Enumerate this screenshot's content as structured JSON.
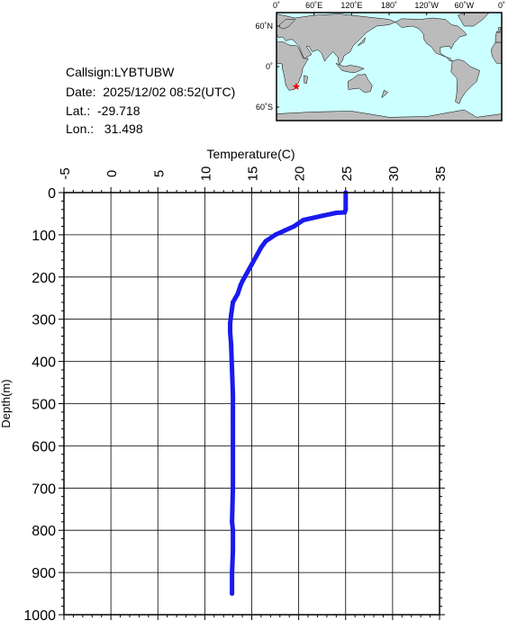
{
  "info": {
    "callsign": "Callsign:LYBTUBW",
    "date": "Date:  2025/12/02 08:52(UTC)",
    "lat": "Lat.:  -29.718",
    "lon": "Lon.:   31.498"
  },
  "map": {
    "lon_ticks": [
      "0˚",
      "60˚E",
      "120˚E",
      "180˚",
      "120˚W",
      "60˚W",
      "0˚"
    ],
    "lat_ticks": [
      "60˚N",
      "0˚",
      "60˚S"
    ],
    "marker": {
      "lat": -29.718,
      "lon": 31.498,
      "color": "#ff0000"
    },
    "ocean_color": "#ccffff",
    "land_color": "#bbbbbb"
  },
  "chart_data": {
    "type": "line",
    "xlabel": "Temperature(C)",
    "ylabel": "Depth(m)",
    "xlim": [
      -5,
      35
    ],
    "ylim": [
      0,
      1000
    ],
    "x_ticks": [
      "-5",
      "0",
      "5",
      "10",
      "15",
      "20",
      "25",
      "30",
      "35"
    ],
    "y_ticks": [
      "0",
      "100",
      "200",
      "300",
      "400",
      "500",
      "600",
      "700",
      "800",
      "900",
      "1000"
    ],
    "y_inverted": true,
    "grid": true,
    "series_color": "#1a1aee",
    "series": [
      {
        "x": [
          25.0,
          25.0,
          24.9,
          24.0,
          22.5,
          20.5,
          19.5,
          18.5,
          17.5,
          16.5,
          16.0,
          15.5,
          15.0,
          14.5,
          14.0,
          13.8,
          13.5,
          13.0,
          12.8,
          12.7,
          12.7,
          12.8,
          12.9,
          13.0,
          13.0,
          13.0,
          13.0,
          12.9,
          13.0,
          13.0,
          12.9,
          12.9
        ],
        "y": [
          0,
          40,
          47,
          48,
          55,
          65,
          80,
          90,
          100,
          115,
          130,
          150,
          170,
          190,
          210,
          220,
          240,
          260,
          290,
          310,
          330,
          360,
          420,
          480,
          530,
          600,
          700,
          780,
          800,
          850,
          900,
          950
        ]
      }
    ]
  }
}
